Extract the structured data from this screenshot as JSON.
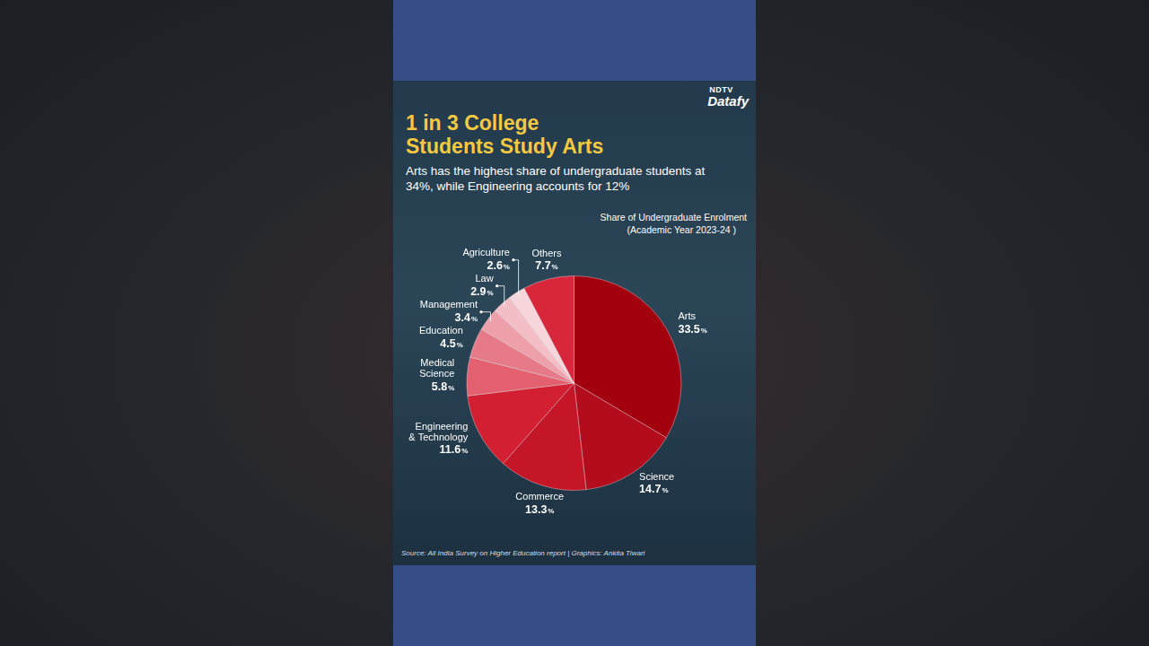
{
  "chart_data": {
    "type": "pie",
    "title": "1 in 3 College Students Study Arts",
    "subtitle": "Arts has the highest share of undergraduate students at 34%, while Engineering accounts for 12%",
    "annotations": [
      "Share of Undergraduate Enrolment",
      "(Academic Year 2023-24 )"
    ],
    "source": "Source: All India Survey on Higher Education report | Graphics: Ankita Tiwari",
    "brand": [
      "NDTV",
      "Datafy"
    ],
    "categories": [
      "Arts",
      "Science",
      "Commerce",
      "Engineering & Technology",
      "Medical Science",
      "Education",
      "Management",
      "Law",
      "Agriculture",
      "Others"
    ],
    "values": [
      33.5,
      14.7,
      13.3,
      11.6,
      5.8,
      4.5,
      3.4,
      2.9,
      2.6,
      7.7
    ],
    "value_labels": [
      "33.5%",
      "14.7%",
      "13.3%",
      "11.6%",
      "5.8%",
      "4.5%",
      "3.4%",
      "2.9%",
      "2.6%",
      "7.7%"
    ],
    "colors": [
      "#a3000f",
      "#b30d1d",
      "#c51627",
      "#d21f31",
      "#e2606f",
      "#e77a88",
      "#eea0aa",
      "#f3bec5",
      "#f7d6db",
      "#d8263b"
    ],
    "data_labels": true
  }
}
